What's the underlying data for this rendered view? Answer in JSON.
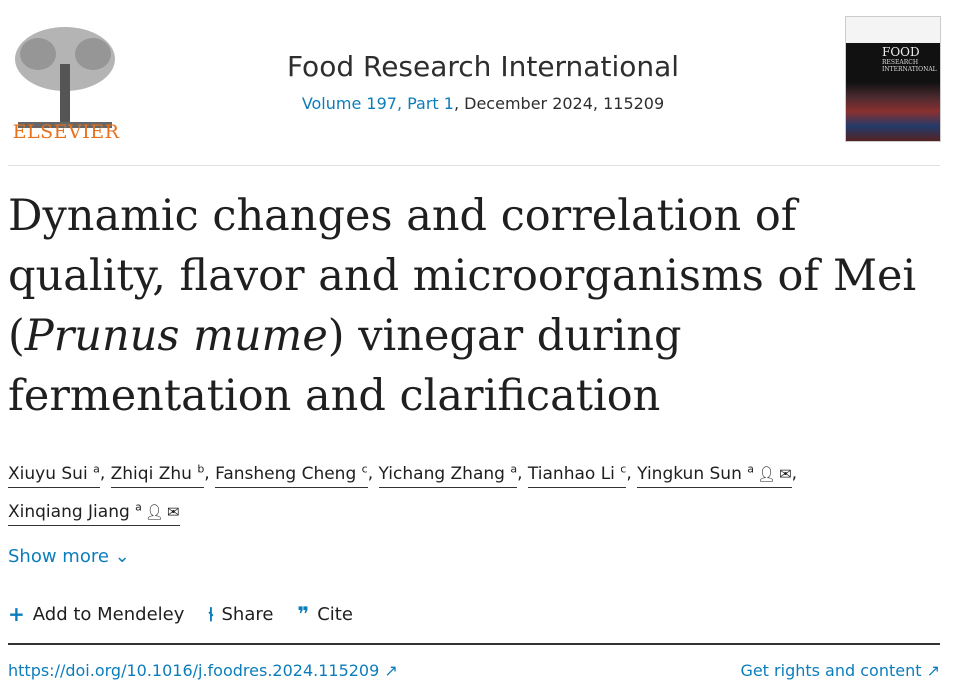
{
  "publisher": {
    "name": "ELSEVIER"
  },
  "journal": {
    "title": "Food Research International",
    "volume_link": "Volume 197, Part 1",
    "issue_rest": ", December 2024, 115209",
    "cover_text": "FOOD RESEARCH INTERNATIONAL"
  },
  "article": {
    "title_parts": [
      "Dynamic changes and correlation of quality, flavor and microorganisms of Mei (",
      "Prunus mume",
      ") vinegar during fermentation and clarification"
    ]
  },
  "authors": [
    {
      "name": "Xiuyu Sui",
      "aff": "a"
    },
    {
      "name": "Zhiqi Zhu",
      "aff": "b"
    },
    {
      "name": "Fansheng Cheng",
      "aff": "c"
    },
    {
      "name": "Yichang Zhang",
      "aff": "a"
    },
    {
      "name": "Tianhao Li",
      "aff": "c"
    },
    {
      "name": "Yingkun Sun",
      "aff": "a",
      "icons": [
        "person-icon",
        "email-icon"
      ]
    },
    {
      "name": "Xinqiang Jiang",
      "aff": "a",
      "icons": [
        "person-icon",
        "email-icon"
      ]
    }
  ],
  "show_more": "Show more",
  "actions": {
    "mendeley": "Add to Mendeley",
    "share": "Share",
    "cite": "Cite"
  },
  "links": {
    "doi": "https://doi.org/10.1016/j.foodres.2024.115209",
    "rights": "Get rights and content"
  },
  "colors": {
    "link": "#0c7dbb",
    "elsevier": "#e9711c"
  }
}
